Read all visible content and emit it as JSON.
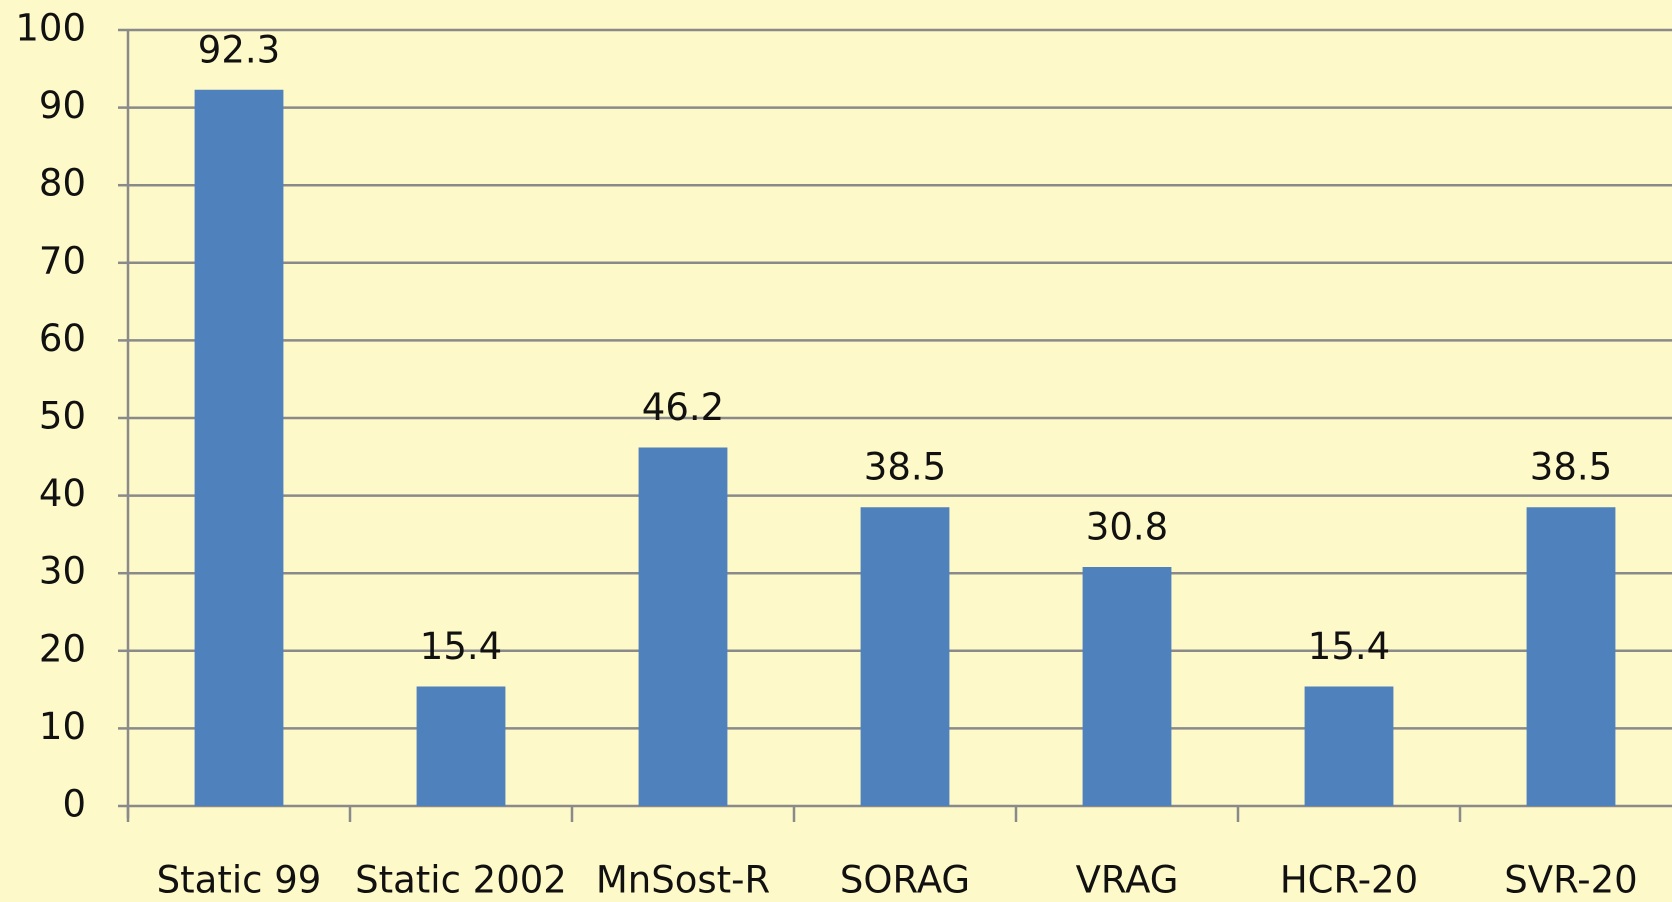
{
  "chart_data": {
    "type": "bar",
    "categories": [
      "Static 99",
      "Static 2002",
      "MnSost-R",
      "SORAG",
      "VRAG",
      "HCR-20",
      "SVR-20"
    ],
    "values": [
      92.3,
      15.4,
      46.2,
      38.5,
      30.8,
      15.4,
      38.5
    ],
    "color": "#4f81bd",
    "ylim": [
      0,
      100
    ],
    "yticks": [
      0,
      10,
      20,
      30,
      40,
      50,
      60,
      70,
      80,
      90,
      100
    ],
    "grid": true
  }
}
